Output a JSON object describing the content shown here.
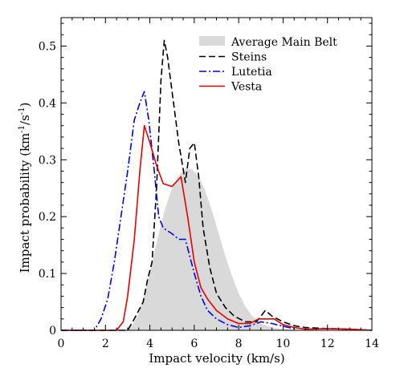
{
  "chart_data": {
    "type": "line",
    "title": "",
    "xlabel": "Impact velocity (km/s)",
    "ylabel_main": "Impact probability (km",
    "ylabel_sup1": "-1",
    "ylabel_mid": "/s",
    "ylabel_sup2": "-1",
    "ylabel_end": ")",
    "xlim": [
      0,
      14
    ],
    "ylim": [
      0,
      0.55
    ],
    "xticks": [
      0,
      2,
      4,
      6,
      8,
      10,
      12,
      14
    ],
    "xtick_labels": [
      "0",
      "2",
      "4",
      "6",
      "8",
      "10",
      "12",
      "14"
    ],
    "yticks": [
      0,
      0.1,
      0.2,
      0.3,
      0.4,
      0.5
    ],
    "ytick_labels": [
      "0",
      "0.1",
      "0.2",
      "0.3",
      "0.4",
      "0.5"
    ],
    "grid": false,
    "legend_position": "top-right",
    "series": [
      {
        "name": "Average Main Belt",
        "style": "filled-area",
        "color": "#d9d9d9",
        "x": [
          2.9,
          3.2,
          3.5,
          3.8,
          4.1,
          4.4,
          4.7,
          5.0,
          5.3,
          5.6,
          5.9,
          6.2,
          6.5,
          6.8,
          7.1,
          7.4,
          7.7,
          8.0,
          8.3,
          8.6,
          9.0,
          9.5,
          10.0,
          10.5,
          11.0
        ],
        "y": [
          0.0,
          0.008,
          0.03,
          0.07,
          0.12,
          0.17,
          0.215,
          0.25,
          0.272,
          0.284,
          0.283,
          0.27,
          0.245,
          0.21,
          0.17,
          0.13,
          0.095,
          0.065,
          0.042,
          0.025,
          0.012,
          0.005,
          0.002,
          0.001,
          0.0
        ]
      },
      {
        "name": "Steins",
        "style": "dashed",
        "color": "#000000",
        "x": [
          0.0,
          3.0,
          3.3,
          3.7,
          3.9,
          4.1,
          4.3,
          4.5,
          4.65,
          4.8,
          5.0,
          5.3,
          5.6,
          5.8,
          6.0,
          6.2,
          6.4,
          6.7,
          7.0,
          7.4,
          7.8,
          8.3,
          8.8,
          9.2,
          9.5,
          10.0,
          10.5,
          11.0,
          12.0,
          13.0,
          14.0
        ],
        "y": [
          0.0,
          0.0,
          0.02,
          0.05,
          0.09,
          0.12,
          0.25,
          0.44,
          0.51,
          0.48,
          0.42,
          0.33,
          0.26,
          0.32,
          0.33,
          0.27,
          0.18,
          0.11,
          0.065,
          0.04,
          0.025,
          0.015,
          0.015,
          0.035,
          0.025,
          0.015,
          0.008,
          0.005,
          0.003,
          0.002,
          0.0
        ]
      },
      {
        "name": "Lutetia",
        "style": "dash-dot",
        "color": "#0000e6",
        "x": [
          0.0,
          1.5,
          1.8,
          2.1,
          2.4,
          2.7,
          3.0,
          3.3,
          3.55,
          3.75,
          3.95,
          4.2,
          4.4,
          4.6,
          5.0,
          5.3,
          5.6,
          5.8,
          6.0,
          6.3,
          6.6,
          7.0,
          7.5,
          8.0,
          8.5,
          9.0,
          9.5,
          10.0,
          10.5
        ],
        "y": [
          0.0,
          0.0,
          0.02,
          0.055,
          0.12,
          0.2,
          0.28,
          0.37,
          0.4,
          0.42,
          0.37,
          0.28,
          0.2,
          0.18,
          0.17,
          0.16,
          0.16,
          0.13,
          0.1,
          0.06,
          0.035,
          0.02,
          0.01,
          0.005,
          0.008,
          0.015,
          0.012,
          0.007,
          0.003
        ]
      },
      {
        "name": "Vesta",
        "style": "solid",
        "color": "#e60000",
        "x": [
          0.0,
          2.5,
          2.8,
          3.0,
          3.3,
          3.55,
          3.75,
          4.0,
          4.3,
          4.6,
          5.0,
          5.4,
          5.7,
          6.0,
          6.3,
          6.6,
          7.0,
          7.5,
          8.0,
          8.5,
          8.9,
          9.2,
          9.6,
          10.0,
          10.5,
          11.0,
          12.0,
          13.0,
          14.0
        ],
        "y": [
          0.0,
          0.0,
          0.015,
          0.06,
          0.16,
          0.28,
          0.36,
          0.33,
          0.29,
          0.258,
          0.253,
          0.27,
          0.2,
          0.12,
          0.075,
          0.055,
          0.035,
          0.02,
          0.012,
          0.012,
          0.02,
          0.02,
          0.02,
          0.01,
          0.005,
          0.002,
          0.003,
          0.002,
          0.0
        ]
      }
    ]
  }
}
